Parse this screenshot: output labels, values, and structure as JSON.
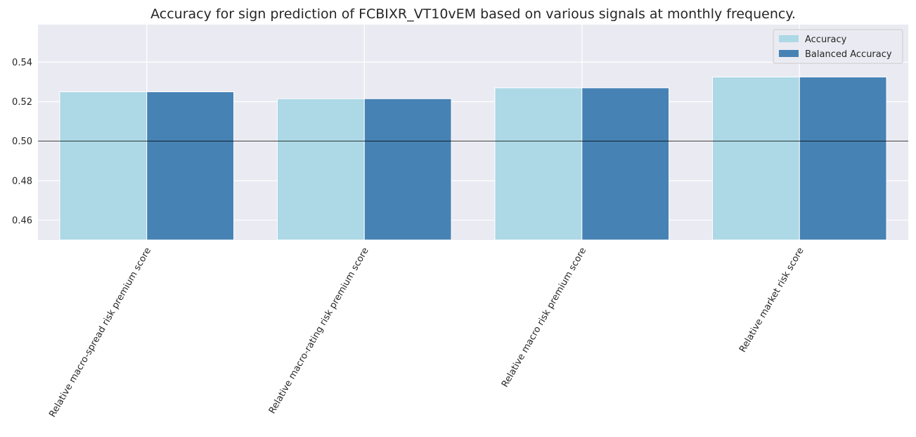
{
  "chart_data": {
    "type": "bar",
    "title": "Accuracy for sign prediction of FCBIXR_VT10vEM based on various signals at monthly frequency.",
    "xlabel": "",
    "ylabel": "",
    "categories": [
      "Relative macro-spread risk premium score",
      "Relative macro-rating risk premium score",
      "Relative macro risk premium score",
      "Relative market risk score"
    ],
    "series": [
      {
        "name": "Accuracy",
        "color": "#add8e6",
        "values": [
          0.525,
          0.5215,
          0.527,
          0.5325
        ]
      },
      {
        "name": "Balanced Accuracy",
        "color": "#4682b4",
        "values": [
          0.525,
          0.5215,
          0.527,
          0.5325
        ]
      }
    ],
    "ylim": [
      0.45,
      0.559
    ],
    "yticks": [
      0.46,
      0.48,
      0.5,
      0.52,
      0.54
    ],
    "ytick_labels": [
      "0.46",
      "0.48",
      "0.50",
      "0.52",
      "0.54"
    ],
    "reference_line": 0.5,
    "grid": true,
    "legend_position": "top-right",
    "background_color": "#eaeaf2",
    "grid_color": "#ffffff"
  }
}
